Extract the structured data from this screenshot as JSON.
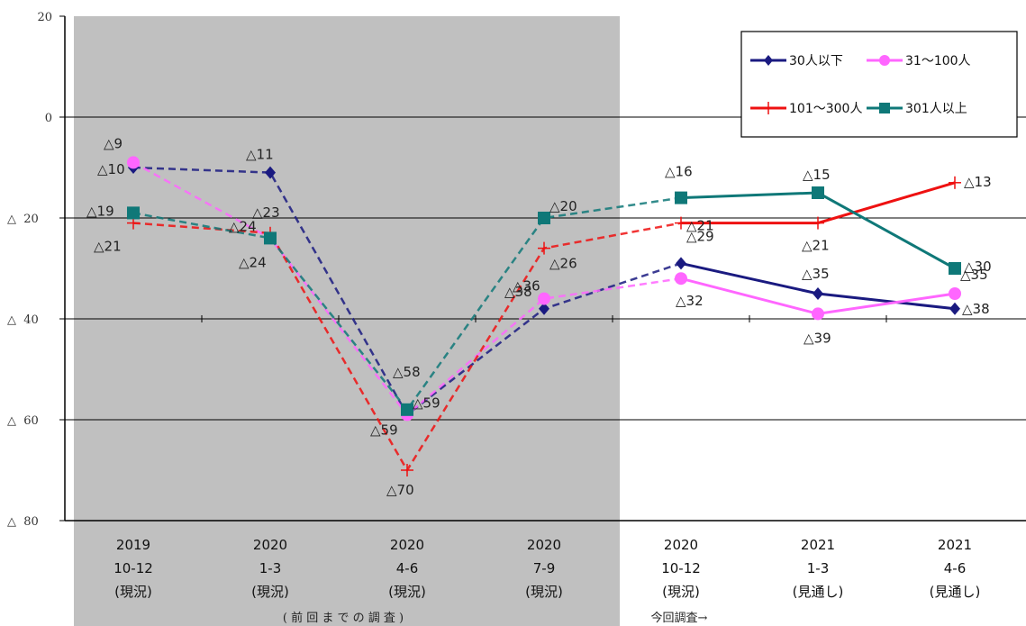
{
  "chart_data": {
    "type": "line",
    "categories": [
      [
        "2019",
        "10-12",
        "(現況)"
      ],
      [
        "2020",
        "1-3",
        "(現況)"
      ],
      [
        "2020",
        "4-6",
        "(現況)"
      ],
      [
        "2020",
        "7-9",
        "(現況)"
      ],
      [
        "2020",
        "10-12",
        "(現況)"
      ],
      [
        "2021",
        "1-3",
        "(見通し)"
      ],
      [
        "2021",
        "4-6",
        "(見通し)"
      ]
    ],
    "ylim": [
      -80,
      20
    ],
    "yticks": [
      {
        "value": 20,
        "label": "20"
      },
      {
        "value": 0,
        "label": "0"
      },
      {
        "value": -20,
        "label": "△ 20"
      },
      {
        "value": -40,
        "label": "△ 40"
      },
      {
        "value": -60,
        "label": "△ 60"
      },
      {
        "value": -80,
        "label": "△ 80"
      }
    ],
    "shaded_categories": [
      0,
      3
    ],
    "dashed_until_index": 4,
    "grid": true,
    "legend_position": "top-right",
    "notes": {
      "previous_survey": "( 前 回 ま で の 調 査 )",
      "current_survey": "今回調査→"
    },
    "series": [
      {
        "name": "30人以下",
        "color": "#1a1a80",
        "marker": "diamond",
        "values": [
          -10,
          -11,
          -59,
          -38,
          -29,
          -35,
          -38
        ],
        "labels": [
          "△10",
          "△11",
          "△59",
          "△38",
          "△29",
          "△35",
          "△38"
        ]
      },
      {
        "name": "31～100人",
        "color": "#ff66ff",
        "marker": "circle",
        "values": [
          -9,
          -24,
          -59,
          -36,
          -32,
          -39,
          -35
        ],
        "labels": [
          "△9",
          "△24",
          "△59",
          "△36",
          "△32",
          "△39",
          "△35"
        ]
      },
      {
        "name": "101～300人",
        "color": "#ee1111",
        "marker": "plus",
        "values": [
          -21,
          -23,
          -70,
          -26,
          -21,
          -21,
          -13
        ],
        "labels": [
          "△21",
          "△23",
          "△70",
          "△26",
          "△21",
          "△21",
          "△13"
        ]
      },
      {
        "name": "301人以上",
        "color": "#0f7878",
        "marker": "square",
        "values": [
          -19,
          -24,
          -58,
          -20,
          -16,
          -15,
          -30
        ],
        "labels": [
          "△19",
          "△24",
          "△58",
          "△20",
          "△16",
          "△15",
          "△30"
        ]
      }
    ]
  }
}
